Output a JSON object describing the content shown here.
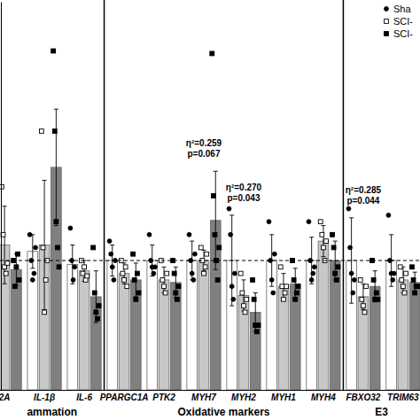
{
  "chart_data": {
    "type": "bar",
    "categories": [
      "2A",
      "IL-1β",
      "IL-6",
      "PPARGC1A",
      "PTK2",
      "MYH7",
      "MYH2",
      "MYH1",
      "MYH4",
      "FBXO32",
      "TRIM63"
    ],
    "series": [
      {
        "name": "Sha",
        "color": "#ffffff",
        "marker": "circle",
        "values": [
          1.0,
          1.07,
          0.97,
          1.0,
          1.0,
          1.0,
          1.0,
          1.0,
          1.0,
          1.0,
          1.0
        ],
        "errors": [
          0.15,
          0.13,
          0.15,
          0.12,
          0.12,
          0.15,
          0.35,
          0.2,
          0.18,
          0.33,
          0.2
        ],
        "points": [
          [
            0.85,
            1.1,
            1.0,
            1.05
          ],
          [
            1.2,
            1.0,
            0.85,
            0.9,
            1.1
          ],
          [
            1.25,
            1.0,
            0.85,
            0.95
          ],
          [
            1.15,
            1.05,
            0.95,
            0.85,
            1.0
          ],
          [
            1.2,
            1.0,
            0.95,
            0.9,
            0.95
          ],
          [
            1.2,
            1.0,
            0.9,
            0.85,
            1.05
          ],
          [
            1.4,
            1.2,
            0.8,
            0.7,
            0.9
          ],
          [
            1.3,
            1.0,
            0.85,
            0.75,
            1.05
          ],
          [
            1.3,
            1.0,
            0.85,
            0.9,
            0.95
          ],
          [
            1.4,
            1.1,
            0.9,
            0.75,
            0.85
          ],
          [
            1.35,
            1.0,
            0.9,
            0.85,
            0.9
          ]
        ]
      },
      {
        "name": "SCI-",
        "color": "#c8c8c8",
        "marker": "square-open",
        "values": [
          1.12,
          1.12,
          0.92,
          0.9,
          0.85,
          1.0,
          0.73,
          0.8,
          1.15,
          0.72,
          0.85
        ],
        "errors": [
          0.3,
          0.5,
          0.08,
          0.08,
          0.1,
          0.08,
          0.12,
          0.1,
          0.12,
          0.1,
          0.1
        ],
        "points": [
          [
            1.57,
            1.2,
            0.95,
            0.9,
            0.98
          ],
          [
            2.0,
            1.1,
            0.6,
            0.85,
            1.0
          ],
          [
            1.0,
            0.9,
            0.95,
            0.85,
            0.88
          ],
          [
            1.0,
            0.9,
            0.85,
            0.95,
            0.8
          ],
          [
            1.0,
            0.85,
            0.8,
            0.75,
            0.9
          ],
          [
            1.1,
            1.0,
            0.9,
            0.95,
            1.05
          ],
          [
            0.9,
            0.75,
            0.65,
            0.6,
            0.7
          ],
          [
            0.95,
            0.8,
            0.7,
            0.75,
            0.8
          ],
          [
            1.3,
            1.2,
            1.1,
            1.0,
            1.15
          ],
          [
            0.85,
            0.7,
            0.65,
            0.6,
            0.8
          ],
          [
            0.95,
            0.85,
            0.8,
            0.75,
            0.9
          ]
        ]
      },
      {
        "name": "SCI-",
        "color": "#808080",
        "marker": "square",
        "values": [
          0.93,
          1.72,
          0.72,
          0.85,
          0.83,
          1.31,
          0.6,
          0.82,
          1.0,
          0.8,
          0.83
        ],
        "errors": [
          0.12,
          0.45,
          0.2,
          0.13,
          0.12,
          0.38,
          0.15,
          0.12,
          0.15,
          0.12,
          0.08
        ],
        "points": [
          [
            1.0,
            0.8,
            0.95,
            1.05,
            0.85
          ],
          [
            2.62,
            2.0,
            1.3,
            1.1,
            0.95
          ],
          [
            1.1,
            0.75,
            0.6,
            0.55,
            0.65
          ],
          [
            1.05,
            0.85,
            0.7,
            0.9,
            0.75
          ],
          [
            1.0,
            0.9,
            0.75,
            0.7,
            0.8
          ],
          [
            2.6,
            1.5,
            1.2,
            1.0,
            0.85,
            1.1
          ],
          [
            0.85,
            0.7,
            0.5,
            0.45,
            0.5
          ],
          [
            1.0,
            0.85,
            0.7,
            0.75,
            0.8
          ],
          [
            1.2,
            1.1,
            0.9,
            0.85,
            0.95
          ],
          [
            1.0,
            0.85,
            0.7,
            0.75,
            0.7
          ],
          [
            0.95,
            0.85,
            0.75,
            0.8,
            0.8
          ]
        ]
      }
    ],
    "ylim": [
      0,
      3
    ],
    "tick_labels": "x",
    "legend": "top-right",
    "reference_line": 1,
    "sections": [
      {
        "label": "ammation",
        "categories": [
          "2A",
          "IL-1β",
          "IL-6"
        ]
      },
      {
        "label": "Oxidative markers",
        "categories": [
          "PPARGC1A",
          "PTK2",
          "MYH7",
          "MYH2",
          "MYH1",
          "MYH4"
        ]
      },
      {
        "label": "E3",
        "categories": [
          "FBXO32",
          "TRIM63"
        ]
      }
    ],
    "annotations": [
      {
        "category": "MYH7",
        "lines": [
          "η²=0.259",
          "p=0.067"
        ]
      },
      {
        "category": "MYH2",
        "lines": [
          "η²=0.270",
          "p=0.043"
        ]
      },
      {
        "category": "FBXO32",
        "lines": [
          "η²=0.285",
          "p=0.044"
        ]
      }
    ]
  }
}
